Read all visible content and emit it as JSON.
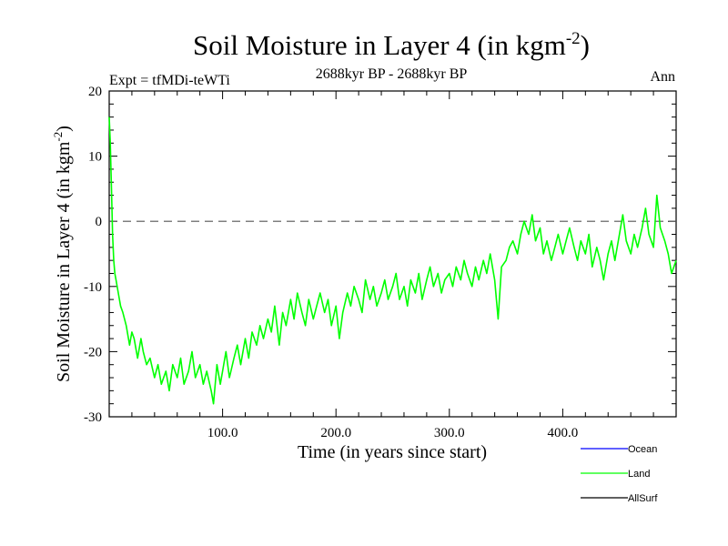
{
  "colors": {
    "ocean": "#0000ff",
    "land": "#00ff00",
    "allsurf": "#000000",
    "zero_line": "#555555"
  },
  "chart_data": {
    "type": "line",
    "title": "Soil Moisture in Layer 4 (in kgm",
    "title_superscript": "-2",
    "title_suffix": ")",
    "subtitle": "2688kyr BP - 2688kyr BP",
    "experiment": "Expt = tfMDi-teWTi",
    "season": "Ann",
    "xlabel": "Time (in years since start)",
    "ylabel": "Soil Moisture in Layer 4 (in kgm",
    "ylabel_superscript": "-2",
    "ylabel_suffix": ")",
    "xlim": [
      0,
      500
    ],
    "ylim": [
      -30,
      20
    ],
    "x_ticks": [
      100,
      200,
      300,
      400
    ],
    "x_tick_labels": [
      "100.0",
      "200.0",
      "300.0",
      "400.0"
    ],
    "y_ticks": [
      -30,
      -20,
      -10,
      0,
      10,
      20
    ],
    "y_tick_labels": [
      "-30",
      "-20",
      "-10",
      "0",
      "10",
      "20"
    ],
    "reference_line": 0,
    "legend": [
      {
        "name": "Ocean",
        "color": "#0000ff"
      },
      {
        "name": "Land",
        "color": "#00ff00"
      },
      {
        "name": "AllSurf",
        "color": "#000000"
      }
    ],
    "series": [
      {
        "name": "Land",
        "color": "#00ff00",
        "x": [
          0,
          1,
          2,
          3,
          4,
          5,
          6,
          8,
          10,
          12,
          15,
          18,
          20,
          22,
          25,
          28,
          30,
          33,
          36,
          40,
          43,
          46,
          50,
          53,
          56,
          60,
          63,
          66,
          70,
          73,
          76,
          80,
          83,
          86,
          90,
          92,
          95,
          98,
          100,
          103,
          106,
          110,
          113,
          116,
          120,
          123,
          126,
          130,
          133,
          136,
          140,
          143,
          146,
          150,
          153,
          156,
          160,
          163,
          166,
          170,
          173,
          176,
          180,
          183,
          186,
          190,
          193,
          196,
          200,
          203,
          206,
          210,
          213,
          216,
          220,
          223,
          226,
          230,
          233,
          236,
          240,
          243,
          246,
          250,
          253,
          256,
          260,
          263,
          266,
          270,
          273,
          276,
          280,
          283,
          286,
          290,
          293,
          296,
          300,
          303,
          306,
          310,
          313,
          316,
          320,
          323,
          326,
          330,
          333,
          336,
          340,
          343,
          346,
          350,
          353,
          356,
          360,
          363,
          366,
          370,
          373,
          376,
          380,
          383,
          386,
          390,
          393,
          396,
          400,
          403,
          406,
          410,
          413,
          416,
          420,
          423,
          426,
          430,
          433,
          436,
          440,
          443,
          446,
          450,
          453,
          456,
          460,
          463,
          466,
          470,
          473,
          476,
          480,
          483,
          486,
          490,
          493,
          496,
          500
        ],
        "y": [
          16,
          12,
          5,
          -2,
          -6,
          -8,
          -9,
          -11,
          -13,
          -14,
          -16,
          -19,
          -17,
          -18,
          -21,
          -18,
          -20,
          -22,
          -21,
          -24,
          -22,
          -25,
          -23,
          -26,
          -22,
          -24,
          -21,
          -25,
          -23,
          -20,
          -24,
          -22,
          -25,
          -23,
          -26,
          -28,
          -22,
          -25,
          -23,
          -20,
          -24,
          -21,
          -19,
          -22,
          -18,
          -21,
          -17,
          -19,
          -16,
          -18,
          -15,
          -17,
          -13,
          -19,
          -14,
          -16,
          -12,
          -15,
          -11,
          -14,
          -16,
          -12,
          -15,
          -13,
          -11,
          -14,
          -12,
          -16,
          -13,
          -18,
          -14,
          -11,
          -13,
          -10,
          -12,
          -14,
          -9,
          -12,
          -10,
          -13,
          -11,
          -9,
          -12,
          -10,
          -8,
          -12,
          -10,
          -13,
          -9,
          -11,
          -8,
          -12,
          -9,
          -7,
          -10,
          -8,
          -11,
          -9,
          -8,
          -10,
          -7,
          -9,
          -6,
          -8,
          -10,
          -7,
          -9,
          -6,
          -8,
          -5,
          -9,
          -15,
          -7,
          -6,
          -4,
          -3,
          -5,
          -2,
          0,
          -2,
          1,
          -3,
          -1,
          -5,
          -3,
          -6,
          -4,
          -2,
          -5,
          -3,
          -1,
          -4,
          -6,
          -3,
          -5,
          -2,
          -7,
          -4,
          -6,
          -9,
          -5,
          -3,
          -6,
          -2,
          1,
          -3,
          -5,
          -2,
          -4,
          -1,
          2,
          -2,
          -4,
          4,
          -1,
          -3,
          -5,
          -8,
          -6
        ]
      }
    ]
  }
}
